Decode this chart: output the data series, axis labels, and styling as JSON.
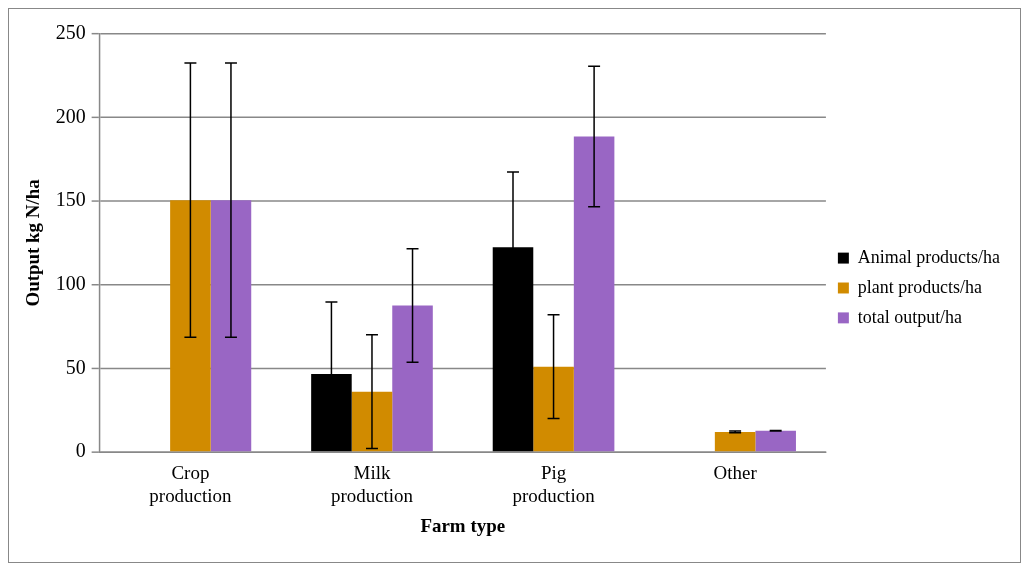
{
  "chart_data": {
    "type": "bar",
    "xlabel": "Farm type",
    "ylabel": "Output kg N/ha",
    "categories": [
      "Crop production",
      "Milk production",
      "Pig production",
      "Other"
    ],
    "series": [
      {
        "name": "Animal products/ha",
        "color": "#000000",
        "values": [
          0,
          46.7,
          122.4,
          0
        ],
        "errors": [
          null,
          43,
          45,
          null
        ]
      },
      {
        "name": "plant products/ha",
        "color": "#d18b00",
        "values": [
          150.6,
          36.1,
          51,
          12
        ],
        "errors": [
          82,
          34,
          31,
          0.5
        ]
      },
      {
        "name": "total output/ha",
        "color": "#9966c4",
        "values": [
          150.6,
          87.6,
          188.7,
          12.7
        ],
        "errors": [
          82,
          34,
          42,
          0.2
        ]
      }
    ],
    "ylim": [
      0,
      250
    ],
    "yticks": [
      0,
      50,
      100,
      150,
      200,
      250
    ],
    "grid": "y",
    "legend": "right"
  }
}
